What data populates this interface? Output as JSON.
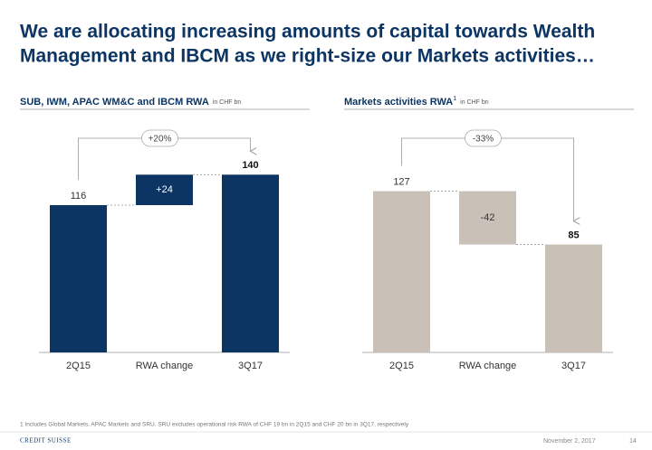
{
  "title": [
    "We are allocating increasing amounts of capital towards Wealth",
    "Management and IBCM as we right-size our Markets activities…"
  ],
  "chart_data": [
    {
      "type": "waterfall",
      "title": "SUB, IWM, APAC WM&C and IBCM RWA",
      "unit": "in CHF bn",
      "categories": [
        "2Q15",
        "RWA change",
        "3Q17"
      ],
      "values": [
        116,
        24,
        140
      ],
      "value_labels": [
        "116",
        "+24",
        "140"
      ],
      "color": "#0c3563",
      "annotation": "+20%"
    },
    {
      "type": "waterfall",
      "title": "Markets activities RWA",
      "footnote_marker": "1",
      "unit": "in CHF bn",
      "categories": [
        "2Q15",
        "RWA change",
        "3Q17"
      ],
      "values": [
        127,
        -42,
        85
      ],
      "value_labels": [
        "127",
        "-42",
        "85"
      ],
      "color": "#c9c0b8",
      "annotation": "-33%"
    }
  ],
  "footnote": "1 Includes Global Markets, APAC Markets and SRU. SRU excludes operational risk RWA of CHF 19 bn in 2Q15 and CHF 20 bn in 3Q17, respectively",
  "logo": "CREDIT SUISSE",
  "date": "November 2, 2017",
  "page": "14"
}
